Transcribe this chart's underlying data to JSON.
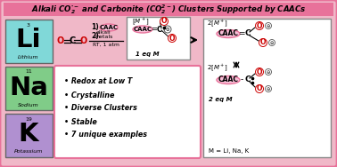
{
  "title": "Alkali CO₂· and Carbonite (CO₂²⁻) Clusters Supported by CAACs",
  "title_bg": "#e8729a",
  "bg_outer": "#f0b8c8",
  "element_li": {
    "symbol": "Li",
    "name": "Lithium",
    "number": "3",
    "bg": "#80d8d8"
  },
  "element_na": {
    "symbol": "Na",
    "name": "Sodium",
    "number": "11",
    "bg": "#80cc88"
  },
  "element_k": {
    "symbol": "K",
    "name": "Potassium",
    "number": "19",
    "bg": "#b090d0"
  },
  "bullet_items": [
    "Redox at Low T",
    "Crystalline",
    "Diverse Clusters",
    "Stable",
    "7 unique examples"
  ],
  "pink": "#e8729a",
  "pink_fill": "#f8c0d8",
  "red": "#cc0000",
  "gray_border": "#888888"
}
